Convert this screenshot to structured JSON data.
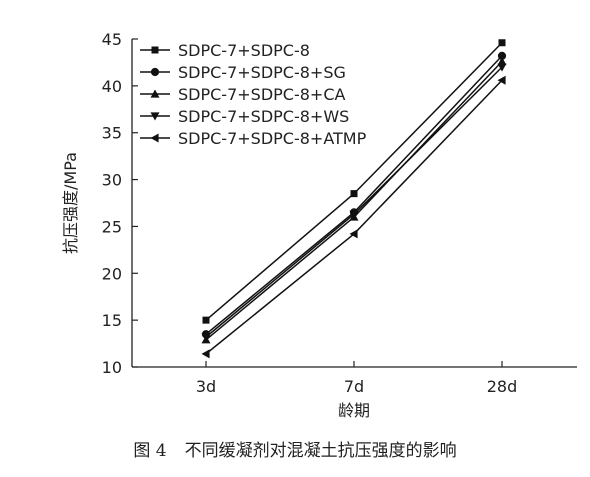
{
  "chart_data": {
    "type": "line",
    "title": "",
    "xlabel": "龄期",
    "ylabel": "抗压强度/MPa",
    "categories": [
      "3d",
      "7d",
      "28d"
    ],
    "ylim": [
      10,
      45
    ],
    "yticks": [
      10,
      15,
      20,
      25,
      30,
      35,
      40,
      45
    ],
    "grid": false,
    "legend_position": "top-left",
    "series": [
      {
        "name": "SDPC-7+SDPC-8",
        "marker": "square",
        "values": [
          15.0,
          28.5,
          44.6
        ]
      },
      {
        "name": "SDPC-7+SDPC-8+SG",
        "marker": "circle",
        "values": [
          13.5,
          26.5,
          43.2
        ]
      },
      {
        "name": "SDPC-7+SDPC-8+CA",
        "marker": "triangle-up",
        "values": [
          12.9,
          26.0,
          42.6
        ]
      },
      {
        "name": "SDPC-7+SDPC-8+WS",
        "marker": "triangle-down",
        "values": [
          13.2,
          26.3,
          42.0
        ]
      },
      {
        "name": "SDPC-7+SDPC-8+ATMP",
        "marker": "triangle-left",
        "values": [
          11.4,
          24.2,
          40.6
        ]
      }
    ],
    "line_color": "#111111"
  },
  "caption": {
    "figure_label": "图 4",
    "text": "不同缓凝剂对混凝土抗压强度的影响"
  }
}
